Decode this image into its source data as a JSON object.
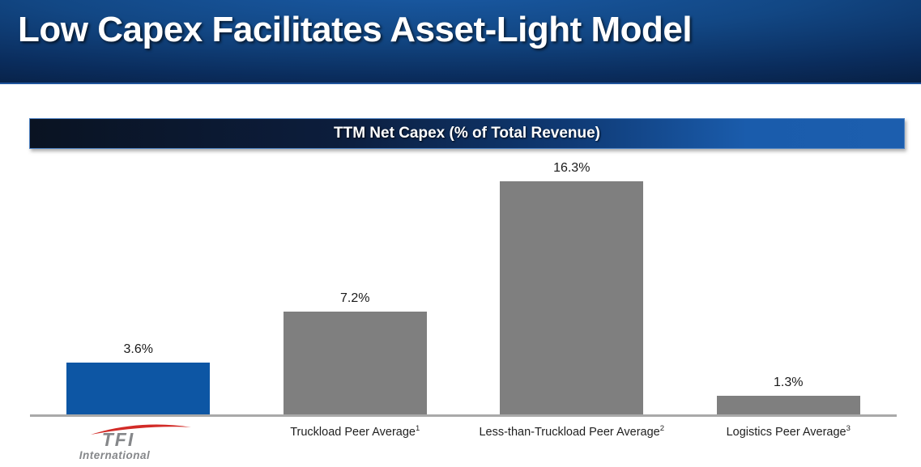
{
  "slide": {
    "title": "Low Capex Facilitates Asset-Light Model"
  },
  "chart": {
    "title": "TTM Net Capex (% of Total Revenue)"
  },
  "chart_data": {
    "type": "bar",
    "title": "TTM Net Capex (% of Total Revenue)",
    "categories": [
      "TFI International",
      "Truckload Peer Average",
      "Less-than-Truckload Peer Average",
      "Logistics Peer Average"
    ],
    "values": [
      3.6,
      7.2,
      16.3,
      1.3
    ],
    "value_labels": [
      "3.6%",
      "7.2%",
      "16.3%",
      "1.3%"
    ],
    "footnote_superscripts": [
      "",
      "1",
      "2",
      "3"
    ],
    "bar_colors": [
      "#0d56a4",
      "#7f7f7f",
      "#7f7f7f",
      "#7f7f7f"
    ],
    "xlabel": "",
    "ylabel": "",
    "ylim": [
      0,
      18
    ],
    "grid": false,
    "legend": "none",
    "note": "first category shown as TFI International logo instead of text"
  },
  "logo": {
    "main": "TFI",
    "sub": "International"
  },
  "colors": {
    "accent_blue": "#0d56a4",
    "bar_gray": "#7f7f7f",
    "axis_gray": "#a9a9a9",
    "header_bright_blue": "#1a5ba6",
    "header_dark_navy": "#040e20",
    "titlebar_right_blue": "#1c5eae",
    "titlebar_border": "#4f83c3",
    "label_text": "#1f1f1f",
    "logo_gray": "#85878a",
    "logo_red": "#d22b27"
  }
}
